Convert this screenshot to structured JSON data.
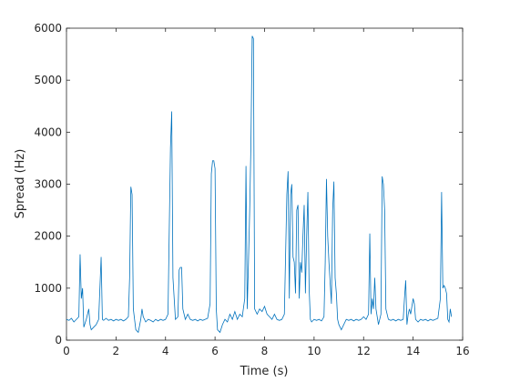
{
  "chart_data": {
    "type": "line",
    "xlabel": "Time (s)",
    "ylabel": "Spread (Hz)",
    "xlim": [
      0,
      16
    ],
    "xticks": [
      0,
      2,
      4,
      6,
      8,
      10,
      12,
      14,
      16
    ],
    "ylim": [
      0,
      6000
    ],
    "yticks": [
      0,
      1000,
      2000,
      3000,
      4000,
      5000,
      6000
    ],
    "grid": false,
    "series": [
      {
        "color": "#0072bd",
        "x": [
          0,
          0.1,
          0.2,
          0.3,
          0.4,
          0.5,
          0.55,
          0.6,
          0.65,
          0.7,
          0.8,
          0.9,
          0.95,
          1.0,
          1.1,
          1.2,
          1.3,
          1.4,
          1.45,
          1.5,
          1.6,
          1.7,
          1.8,
          1.9,
          2.0,
          2.1,
          2.2,
          2.3,
          2.4,
          2.5,
          2.55,
          2.6,
          2.65,
          2.7,
          2.8,
          2.9,
          3.0,
          3.05,
          3.1,
          3.2,
          3.3,
          3.4,
          3.5,
          3.6,
          3.7,
          3.8,
          3.9,
          4.0,
          4.1,
          4.2,
          4.25,
          4.3,
          4.4,
          4.5,
          4.55,
          4.6,
          4.65,
          4.7,
          4.8,
          4.9,
          5.0,
          5.1,
          5.2,
          5.3,
          5.4,
          5.5,
          5.6,
          5.7,
          5.8,
          5.85,
          5.9,
          5.95,
          6.0,
          6.05,
          6.1,
          6.2,
          6.3,
          6.4,
          6.5,
          6.6,
          6.7,
          6.8,
          6.9,
          7.0,
          7.1,
          7.2,
          7.25,
          7.3,
          7.35,
          7.4,
          7.45,
          7.5,
          7.55,
          7.6,
          7.7,
          7.8,
          7.9,
          8.0,
          8.1,
          8.2,
          8.3,
          8.4,
          8.5,
          8.6,
          8.7,
          8.8,
          8.9,
          8.95,
          9.0,
          9.05,
          9.1,
          9.15,
          9.2,
          9.25,
          9.3,
          9.35,
          9.4,
          9.45,
          9.5,
          9.55,
          9.6,
          9.65,
          9.7,
          9.75,
          9.8,
          9.85,
          9.9,
          10.0,
          10.1,
          10.2,
          10.3,
          10.4,
          10.45,
          10.5,
          10.55,
          10.6,
          10.7,
          10.75,
          10.8,
          10.85,
          10.9,
          10.95,
          11.0,
          11.1,
          11.2,
          11.3,
          11.4,
          11.5,
          11.6,
          11.7,
          11.8,
          11.9,
          12.0,
          12.1,
          12.2,
          12.25,
          12.3,
          12.35,
          12.4,
          12.45,
          12.5,
          12.6,
          12.7,
          12.75,
          12.8,
          12.85,
          12.9,
          13.0,
          13.1,
          13.2,
          13.3,
          13.4,
          13.5,
          13.6,
          13.65,
          13.7,
          13.75,
          13.8,
          13.85,
          13.9,
          14.0,
          14.05,
          14.1,
          14.2,
          14.3,
          14.4,
          14.5,
          14.6,
          14.7,
          14.8,
          14.9,
          15.0,
          15.1,
          15.15,
          15.2,
          15.25,
          15.3,
          15.35,
          15.4,
          15.45,
          15.5,
          15.55
        ],
        "values": [
          400,
          380,
          420,
          350,
          400,
          450,
          1650,
          800,
          1000,
          250,
          400,
          600,
          300,
          200,
          250,
          300,
          400,
          1600,
          400,
          380,
          420,
          380,
          400,
          370,
          400,
          380,
          400,
          370,
          400,
          450,
          1200,
          2950,
          2800,
          600,
          200,
          150,
          400,
          600,
          450,
          350,
          400,
          380,
          350,
          400,
          370,
          400,
          380,
          400,
          500,
          3700,
          4400,
          1200,
          400,
          450,
          1350,
          1400,
          1400,
          600,
          400,
          500,
          400,
          380,
          400,
          370,
          400,
          380,
          400,
          420,
          700,
          3200,
          3450,
          3450,
          3300,
          600,
          200,
          150,
          300,
          400,
          350,
          500,
          400,
          550,
          400,
          500,
          450,
          800,
          3350,
          600,
          1500,
          2500,
          3800,
          5850,
          5800,
          600,
          500,
          600,
          550,
          650,
          500,
          450,
          400,
          500,
          400,
          380,
          400,
          500,
          2800,
          3250,
          800,
          2800,
          3000,
          1600,
          1500,
          900,
          2500,
          2600,
          800,
          1500,
          1300,
          2000,
          2600,
          900,
          2000,
          2850,
          1000,
          400,
          350,
          400,
          380,
          400,
          370,
          450,
          1500,
          3100,
          2000,
          1500,
          700,
          2500,
          3050,
          1200,
          900,
          400,
          300,
          200,
          300,
          400,
          380,
          400,
          370,
          400,
          380,
          400,
          450,
          400,
          500,
          2050,
          500,
          800,
          600,
          1200,
          600,
          300,
          500,
          3150,
          3000,
          2500,
          600,
          400,
          380,
          400,
          370,
          400,
          380,
          400,
          800,
          1150,
          300,
          500,
          600,
          500,
          800,
          700,
          400,
          350,
          400,
          380,
          400,
          370,
          400,
          380,
          400,
          420,
          800,
          2850,
          1000,
          1050,
          1000,
          900,
          400,
          350,
          600,
          450
        ]
      }
    ]
  }
}
